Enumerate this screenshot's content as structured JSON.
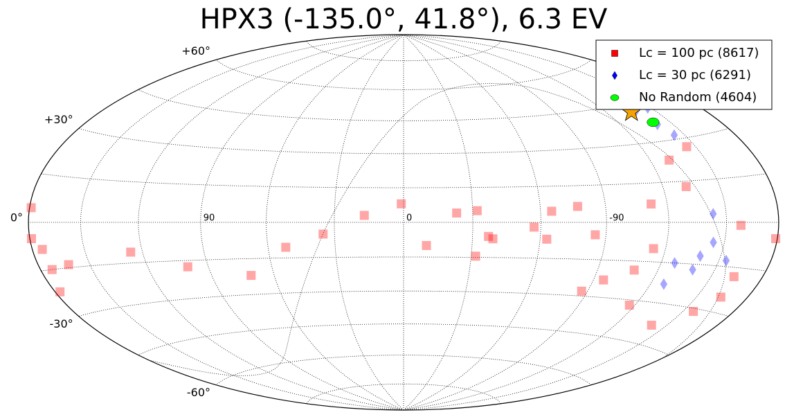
{
  "chart_data": {
    "type": "scatter",
    "projection": "hammer",
    "title": "HPX3 (-135.0°, 41.8°), 6.3 EV",
    "xlim": [
      180,
      -180
    ],
    "ylim": [
      -90,
      90
    ],
    "xticks": [
      90,
      0,
      -90
    ],
    "yticks": [
      {
        "value": 60,
        "label": "+60°"
      },
      {
        "value": 30,
        "label": "+30°"
      },
      {
        "value": 0,
        "label": "0°"
      },
      {
        "value": -30,
        "label": "-30°"
      },
      {
        "value": -60,
        "label": "-60°"
      }
    ],
    "grid": true,
    "legend": "upper right",
    "alpha": 0.35,
    "source": {
      "x": -135,
      "y": 41.8,
      "color": "#f5a300"
    },
    "series": [
      {
        "name": "Lc = 100 pc (8617)",
        "color": "#ff0000",
        "marker": "square",
        "x": [
          179,
          179,
          174,
          177,
          173,
          162,
          126,
          100,
          71,
          52,
          35,
          17,
          1,
          -10,
          -23,
          -32,
          -37,
          -39,
          -32,
          -57,
          -65,
          -63,
          -77,
          -85,
          -87,
          -95,
          -117,
          -108,
          -112,
          -130,
          -132,
          -145,
          -158,
          -179,
          -156,
          -141,
          -163,
          -164,
          -114
        ],
        "y": [
          4.5,
          -5,
          -8.5,
          -22,
          -15,
          -14,
          -11,
          -17.5,
          -22,
          -10.5,
          -5,
          3,
          8,
          -10,
          4,
          5,
          -6,
          -7,
          -14.5,
          -2,
          4.6,
          -7,
          6.5,
          -5,
          -28,
          -23,
          -32,
          -18.5,
          7,
          23,
          13,
          27,
          -1,
          -5,
          -31,
          -38,
          -18,
          -25,
          -10
        ]
      },
      {
        "name": "Lc = 30 pc (6291)",
        "color": "#0000ff",
        "marker": "diamond",
        "x": [
          -139,
          -144,
          -138,
          -127,
          -154,
          -143,
          -127,
          -139,
          -141,
          -144,
          -148
        ],
        "y": [
          -12,
          -7,
          -17,
          -15,
          -13,
          3,
          -23,
          42,
          36,
          31.5,
          42
        ]
      },
      {
        "name": "No Random (4604)",
        "color": "#00ff00",
        "marker": "circle",
        "x": [
          -140
        ],
        "y": [
          37
        ]
      }
    ]
  }
}
